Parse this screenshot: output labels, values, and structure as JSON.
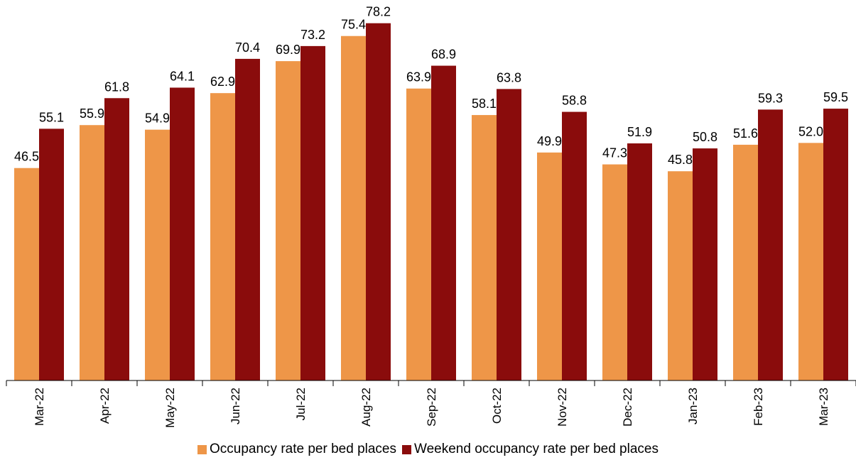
{
  "colors": {
    "occupancy": "#EE9648",
    "weekend": "#8A0C0C",
    "axis": "#000000",
    "background": "#ffffff"
  },
  "legend": {
    "position": "bottom-center",
    "items": [
      {
        "label": "Occupancy rate per bed places",
        "color": "#EE9648"
      },
      {
        "label": "Weekend occupancy rate per bed places",
        "color": "#8A0C0C"
      }
    ]
  },
  "chart_data": {
    "type": "bar",
    "title": "",
    "xlabel": "",
    "ylabel": "",
    "ylim": [
      0,
      80
    ],
    "grid": false,
    "categories": [
      "Mar-22",
      "Apr-22",
      "May-22",
      "Jun-22",
      "Jul-22",
      "Aug-22",
      "Sep-22",
      "Oct-22",
      "Nov-22",
      "Dec-22",
      "Jan-23",
      "Feb-23",
      "Mar-23"
    ],
    "series": [
      {
        "name": "Occupancy rate per bed places",
        "values": [
          46.5,
          55.9,
          54.9,
          62.9,
          69.9,
          75.4,
          63.9,
          58.1,
          49.9,
          47.3,
          45.8,
          51.6,
          52.0
        ],
        "labels": [
          "46.5",
          "55.9",
          "54.9",
          "62.9",
          "69.9",
          "75.4",
          "63.9",
          "58.1",
          "49.9",
          "47.3",
          "45.8",
          "51.6",
          "52.0"
        ]
      },
      {
        "name": "Weekend occupancy rate per bed places",
        "values": [
          55.1,
          61.8,
          64.1,
          70.4,
          73.2,
          78.2,
          68.9,
          63.8,
          58.8,
          51.9,
          50.8,
          59.3,
          59.5
        ],
        "labels": [
          "55.1",
          "61.8",
          "64.1",
          "70.4",
          "73.2",
          "78.2",
          "68.9",
          "63.8",
          "58.8",
          "51.9",
          "50.8",
          "59.3",
          "59.5"
        ]
      }
    ]
  }
}
